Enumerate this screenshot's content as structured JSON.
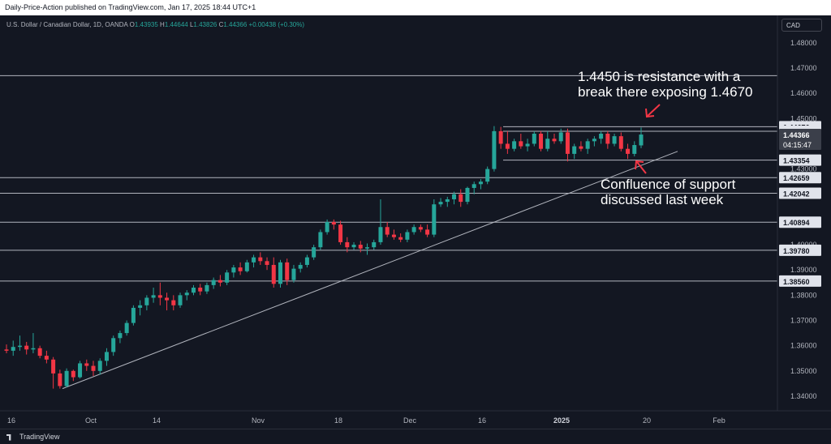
{
  "header": {
    "publish_line": "Daily-Price-Action published on TradingView.com, Jan 17, 2025 18:44 UTC+1"
  },
  "legend": {
    "symbol": "U.S. Dollar / Canadian Dollar, 1D, OANDA",
    "open_label": "O",
    "open": "1.43935",
    "high_label": "H",
    "high": "1.44644",
    "low_label": "L",
    "low": "1.43826",
    "close_label": "C",
    "close": "1.44366",
    "change": "+0.00438 (+0.30%)"
  },
  "currency_button": "CAD",
  "colors": {
    "background": "#131722",
    "up_candle": "#26a69a",
    "down_candle": "#f23645",
    "level_line": "#b2b5be",
    "annotation_arrow": "#f23645"
  },
  "annotations": {
    "resistance_line1": "1.4450 is resistance with a",
    "resistance_line2": "break there exposing 1.4670",
    "support_line1": "Confluence of support",
    "support_line2": "discussed last week"
  },
  "price_axis": {
    "ticks": [
      "1.48000",
      "1.47000",
      "1.46000",
      "1.45000",
      "1.43000",
      "1.42000",
      "1.41000",
      "1.40000",
      "1.39000",
      "1.38000",
      "1.37000",
      "1.36000",
      "1.35000",
      "1.34000"
    ],
    "level_labels": [
      "1.44676",
      "1.44496",
      "1.43354",
      "1.42659",
      "1.42042",
      "1.40894",
      "1.39780",
      "1.38560"
    ],
    "current_price": "1.44366",
    "countdown": "04:15:47"
  },
  "time_axis": {
    "labels": [
      "16",
      "Oct",
      "14",
      "Nov",
      "18",
      "Dec",
      "16",
      "2025",
      "20",
      "Feb"
    ]
  },
  "footer": {
    "brand": "TradingView"
  },
  "chart_data": {
    "type": "candlestick",
    "symbol": "USD/CAD",
    "timeframe": "1D",
    "y_range": [
      1.335,
      1.482
    ],
    "horizontal_levels": [
      1.467,
      1.44676,
      1.44496,
      1.43354,
      1.42659,
      1.42042,
      1.40894,
      1.3978,
      1.3856
    ],
    "trendline": {
      "from": [
        "2024-09-25",
        1.343
      ],
      "to": [
        "2025-01-27",
        1.437
      ]
    },
    "candles": [
      {
        "o": 1.3585,
        "h": 1.3605,
        "l": 1.357,
        "c": 1.358
      },
      {
        "o": 1.358,
        "h": 1.362,
        "l": 1.356,
        "c": 1.3595
      },
      {
        "o": 1.3595,
        "h": 1.364,
        "l": 1.358,
        "c": 1.36
      },
      {
        "o": 1.36,
        "h": 1.3615,
        "l": 1.3565,
        "c": 1.3585
      },
      {
        "o": 1.3585,
        "h": 1.365,
        "l": 1.357,
        "c": 1.359
      },
      {
        "o": 1.359,
        "h": 1.36,
        "l": 1.355,
        "c": 1.356
      },
      {
        "o": 1.356,
        "h": 1.358,
        "l": 1.353,
        "c": 1.3545
      },
      {
        "o": 1.3545,
        "h": 1.3555,
        "l": 1.343,
        "c": 1.349
      },
      {
        "o": 1.349,
        "h": 1.3505,
        "l": 1.343,
        "c": 1.344
      },
      {
        "o": 1.344,
        "h": 1.351,
        "l": 1.3435,
        "c": 1.35
      },
      {
        "o": 1.35,
        "h": 1.3505,
        "l": 1.346,
        "c": 1.3475
      },
      {
        "o": 1.3475,
        "h": 1.354,
        "l": 1.347,
        "c": 1.353
      },
      {
        "o": 1.353,
        "h": 1.3545,
        "l": 1.35,
        "c": 1.352
      },
      {
        "o": 1.352,
        "h": 1.354,
        "l": 1.348,
        "c": 1.35
      },
      {
        "o": 1.35,
        "h": 1.355,
        "l": 1.3485,
        "c": 1.354
      },
      {
        "o": 1.354,
        "h": 1.359,
        "l": 1.352,
        "c": 1.3575
      },
      {
        "o": 1.3575,
        "h": 1.364,
        "l": 1.356,
        "c": 1.363
      },
      {
        "o": 1.363,
        "h": 1.366,
        "l": 1.361,
        "c": 1.365
      },
      {
        "o": 1.365,
        "h": 1.37,
        "l": 1.364,
        "c": 1.369
      },
      {
        "o": 1.369,
        "h": 1.376,
        "l": 1.368,
        "c": 1.375
      },
      {
        "o": 1.375,
        "h": 1.378,
        "l": 1.372,
        "c": 1.376
      },
      {
        "o": 1.376,
        "h": 1.38,
        "l": 1.374,
        "c": 1.379
      },
      {
        "o": 1.379,
        "h": 1.383,
        "l": 1.377,
        "c": 1.38
      },
      {
        "o": 1.38,
        "h": 1.385,
        "l": 1.376,
        "c": 1.379
      },
      {
        "o": 1.379,
        "h": 1.381,
        "l": 1.374,
        "c": 1.378
      },
      {
        "o": 1.378,
        "h": 1.38,
        "l": 1.374,
        "c": 1.376
      },
      {
        "o": 1.376,
        "h": 1.381,
        "l": 1.375,
        "c": 1.38
      },
      {
        "o": 1.38,
        "h": 1.382,
        "l": 1.378,
        "c": 1.381
      },
      {
        "o": 1.381,
        "h": 1.384,
        "l": 1.38,
        "c": 1.383
      },
      {
        "o": 1.383,
        "h": 1.3845,
        "l": 1.38,
        "c": 1.3815
      },
      {
        "o": 1.3815,
        "h": 1.385,
        "l": 1.3805,
        "c": 1.384
      },
      {
        "o": 1.384,
        "h": 1.387,
        "l": 1.3825,
        "c": 1.386
      },
      {
        "o": 1.386,
        "h": 1.388,
        "l": 1.3835,
        "c": 1.385
      },
      {
        "o": 1.385,
        "h": 1.39,
        "l": 1.384,
        "c": 1.389
      },
      {
        "o": 1.389,
        "h": 1.392,
        "l": 1.387,
        "c": 1.391
      },
      {
        "o": 1.391,
        "h": 1.393,
        "l": 1.388,
        "c": 1.3895
      },
      {
        "o": 1.3895,
        "h": 1.394,
        "l": 1.389,
        "c": 1.393
      },
      {
        "o": 1.393,
        "h": 1.396,
        "l": 1.391,
        "c": 1.395
      },
      {
        "o": 1.395,
        "h": 1.397,
        "l": 1.392,
        "c": 1.3935
      },
      {
        "o": 1.3935,
        "h": 1.395,
        "l": 1.39,
        "c": 1.392
      },
      {
        "o": 1.392,
        "h": 1.395,
        "l": 1.383,
        "c": 1.3845
      },
      {
        "o": 1.3845,
        "h": 1.394,
        "l": 1.383,
        "c": 1.393
      },
      {
        "o": 1.393,
        "h": 1.3945,
        "l": 1.384,
        "c": 1.386
      },
      {
        "o": 1.386,
        "h": 1.392,
        "l": 1.385,
        "c": 1.3905
      },
      {
        "o": 1.3905,
        "h": 1.393,
        "l": 1.389,
        "c": 1.392
      },
      {
        "o": 1.392,
        "h": 1.396,
        "l": 1.391,
        "c": 1.395
      },
      {
        "o": 1.395,
        "h": 1.4,
        "l": 1.394,
        "c": 1.399
      },
      {
        "o": 1.399,
        "h": 1.406,
        "l": 1.398,
        "c": 1.405
      },
      {
        "o": 1.405,
        "h": 1.41,
        "l": 1.404,
        "c": 1.409
      },
      {
        "o": 1.409,
        "h": 1.41,
        "l": 1.406,
        "c": 1.408
      },
      {
        "o": 1.408,
        "h": 1.4095,
        "l": 1.4,
        "c": 1.401
      },
      {
        "o": 1.401,
        "h": 1.403,
        "l": 1.397,
        "c": 1.399
      },
      {
        "o": 1.399,
        "h": 1.401,
        "l": 1.398,
        "c": 1.4
      },
      {
        "o": 1.4,
        "h": 1.4015,
        "l": 1.397,
        "c": 1.3985
      },
      {
        "o": 1.3985,
        "h": 1.4005,
        "l": 1.396,
        "c": 1.399
      },
      {
        "o": 1.399,
        "h": 1.402,
        "l": 1.398,
        "c": 1.401
      },
      {
        "o": 1.401,
        "h": 1.418,
        "l": 1.4,
        "c": 1.407
      },
      {
        "o": 1.407,
        "h": 1.409,
        "l": 1.403,
        "c": 1.404
      },
      {
        "o": 1.404,
        "h": 1.406,
        "l": 1.402,
        "c": 1.403
      },
      {
        "o": 1.403,
        "h": 1.4045,
        "l": 1.401,
        "c": 1.402
      },
      {
        "o": 1.402,
        "h": 1.406,
        "l": 1.401,
        "c": 1.405
      },
      {
        "o": 1.405,
        "h": 1.408,
        "l": 1.404,
        "c": 1.407
      },
      {
        "o": 1.407,
        "h": 1.408,
        "l": 1.405,
        "c": 1.406
      },
      {
        "o": 1.406,
        "h": 1.408,
        "l": 1.403,
        "c": 1.404
      },
      {
        "o": 1.404,
        "h": 1.418,
        "l": 1.403,
        "c": 1.416
      },
      {
        "o": 1.416,
        "h": 1.4185,
        "l": 1.415,
        "c": 1.417
      },
      {
        "o": 1.417,
        "h": 1.419,
        "l": 1.415,
        "c": 1.418
      },
      {
        "o": 1.418,
        "h": 1.421,
        "l": 1.416,
        "c": 1.42
      },
      {
        "o": 1.42,
        "h": 1.422,
        "l": 1.415,
        "c": 1.417
      },
      {
        "o": 1.417,
        "h": 1.423,
        "l": 1.416,
        "c": 1.4225
      },
      {
        "o": 1.4225,
        "h": 1.425,
        "l": 1.42,
        "c": 1.424
      },
      {
        "o": 1.424,
        "h": 1.426,
        "l": 1.422,
        "c": 1.425
      },
      {
        "o": 1.425,
        "h": 1.431,
        "l": 1.424,
        "c": 1.43
      },
      {
        "o": 1.43,
        "h": 1.447,
        "l": 1.429,
        "c": 1.445
      },
      {
        "o": 1.445,
        "h": 1.4467,
        "l": 1.438,
        "c": 1.44
      },
      {
        "o": 1.44,
        "h": 1.445,
        "l": 1.436,
        "c": 1.438
      },
      {
        "o": 1.438,
        "h": 1.442,
        "l": 1.437,
        "c": 1.441
      },
      {
        "o": 1.441,
        "h": 1.444,
        "l": 1.438,
        "c": 1.439
      },
      {
        "o": 1.439,
        "h": 1.442,
        "l": 1.437,
        "c": 1.44
      },
      {
        "o": 1.44,
        "h": 1.445,
        "l": 1.439,
        "c": 1.444
      },
      {
        "o": 1.444,
        "h": 1.445,
        "l": 1.437,
        "c": 1.438
      },
      {
        "o": 1.438,
        "h": 1.445,
        "l": 1.437,
        "c": 1.442
      },
      {
        "o": 1.442,
        "h": 1.444,
        "l": 1.44,
        "c": 1.441
      },
      {
        "o": 1.441,
        "h": 1.446,
        "l": 1.44,
        "c": 1.4445
      },
      {
        "o": 1.4445,
        "h": 1.446,
        "l": 1.433,
        "c": 1.436
      },
      {
        "o": 1.436,
        "h": 1.44,
        "l": 1.434,
        "c": 1.439
      },
      {
        "o": 1.439,
        "h": 1.441,
        "l": 1.437,
        "c": 1.438
      },
      {
        "o": 1.438,
        "h": 1.442,
        "l": 1.436,
        "c": 1.441
      },
      {
        "o": 1.441,
        "h": 1.443,
        "l": 1.439,
        "c": 1.442
      },
      {
        "o": 1.442,
        "h": 1.445,
        "l": 1.44,
        "c": 1.444
      },
      {
        "o": 1.444,
        "h": 1.445,
        "l": 1.438,
        "c": 1.44
      },
      {
        "o": 1.44,
        "h": 1.444,
        "l": 1.439,
        "c": 1.443
      },
      {
        "o": 1.443,
        "h": 1.4445,
        "l": 1.437,
        "c": 1.438
      },
      {
        "o": 1.438,
        "h": 1.44,
        "l": 1.434,
        "c": 1.436
      },
      {
        "o": 1.436,
        "h": 1.441,
        "l": 1.435,
        "c": 1.4395
      },
      {
        "o": 1.43935,
        "h": 1.44644,
        "l": 1.43826,
        "c": 1.44366
      }
    ]
  }
}
